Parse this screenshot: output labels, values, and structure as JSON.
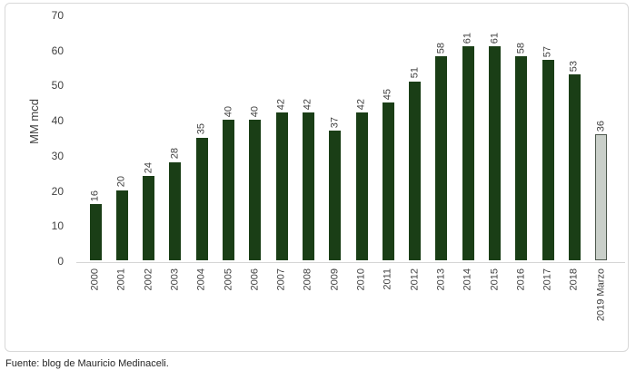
{
  "chart_data": {
    "type": "bar",
    "categories": [
      "2000",
      "2001",
      "2002",
      "2003",
      "2004",
      "2005",
      "2006",
      "2007",
      "2008",
      "2009",
      "2010",
      "2011",
      "2012",
      "2013",
      "2014",
      "2015",
      "2016",
      "2017",
      "2018",
      "2019 Marzo"
    ],
    "values": [
      16,
      20,
      24,
      28,
      35,
      40,
      40,
      42,
      42,
      37,
      42,
      45,
      51,
      58,
      61,
      61,
      58,
      57,
      53,
      36
    ],
    "title": "",
    "xlabel": "",
    "ylabel": "MM mcd",
    "ylim": [
      0,
      70
    ],
    "ytick_step": 10,
    "grid": false,
    "legend": "none",
    "bar_color": "#1a3e16",
    "last_bar_fill": "#c9cfc9",
    "last_bar_border": "#4d584d",
    "label_color": "#3f3f3f"
  },
  "source": {
    "text": "Fuente: blog  de Mauricio Medinaceli."
  }
}
